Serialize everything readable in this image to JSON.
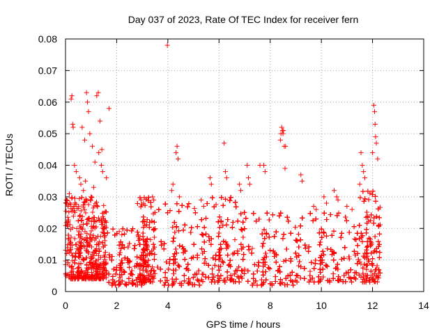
{
  "chart_data": {
    "type": "scatter",
    "title": "Day 037 of 2023, Rate Of TEC Index for receiver fern",
    "xlabel": "GPS time / hours",
    "ylabel": "ROTI / TECUs",
    "xlim": [
      0,
      14
    ],
    "ylim": [
      0,
      0.08
    ],
    "x_ticks": [
      "0",
      "2",
      "4",
      "6",
      "8",
      "10",
      "12",
      "14"
    ],
    "y_ticks": [
      "0",
      "0.01",
      "0.02",
      "0.03",
      "0.04",
      "0.05",
      "0.06",
      "0.07",
      "0.08"
    ],
    "grid": true,
    "marker": "plus",
    "color": "#ff0000",
    "series": [
      {
        "x": [
          0.22,
          0.25,
          0.28,
          0.3,
          0.82,
          0.86,
          0.9,
          1.22,
          1.28,
          1.35,
          1.42,
          1.7,
          0.95,
          1.05,
          1.3,
          0.65,
          0.75,
          1.15,
          0.35,
          0.42,
          0.55,
          0.6,
          0.7,
          0.78,
          1.0,
          1.1,
          1.4,
          1.45,
          1.6,
          0.05,
          0.1,
          0.15,
          3.98,
          4.32,
          4.36,
          4.4,
          4.2,
          4.15,
          4.45,
          6.2,
          6.25,
          6.3,
          5.65,
          5.7,
          7.1,
          7.15,
          7.2,
          7.6,
          7.75,
          7.8,
          8.42,
          8.45,
          8.48,
          8.5,
          8.52,
          8.55,
          8.4,
          8.6,
          8.58,
          9.2,
          9.25,
          10.5,
          10.6,
          10.65,
          11.55,
          11.6,
          11.65,
          11.7,
          12.05,
          12.08,
          12.1,
          12.12,
          12.15,
          12.0,
          12.2,
          11.5,
          6.8,
          6.85,
          3.4,
          3.45,
          2.95,
          3.05,
          5.3,
          5.4,
          2.1,
          2.2,
          9.7,
          9.8,
          10.1,
          10.2,
          11.0,
          11.2
        ],
        "y": [
          0.061,
          0.062,
          0.053,
          0.052,
          0.063,
          0.06,
          0.057,
          0.062,
          0.063,
          0.054,
          0.045,
          0.058,
          0.05,
          0.046,
          0.044,
          0.052,
          0.048,
          0.041,
          0.04,
          0.038,
          0.036,
          0.034,
          0.032,
          0.035,
          0.03,
          0.033,
          0.04,
          0.038,
          0.036,
          0.029,
          0.027,
          0.031,
          0.078,
          0.044,
          0.046,
          0.042,
          0.034,
          0.032,
          0.03,
          0.047,
          0.038,
          0.036,
          0.036,
          0.034,
          0.04,
          0.036,
          0.034,
          0.04,
          0.04,
          0.038,
          0.05,
          0.052,
          0.051,
          0.05,
          0.051,
          0.046,
          0.048,
          0.046,
          0.039,
          0.037,
          0.035,
          0.032,
          0.03,
          0.029,
          0.044,
          0.04,
          0.038,
          0.036,
          0.059,
          0.057,
          0.053,
          0.049,
          0.047,
          0.044,
          0.042,
          0.034,
          0.034,
          0.032,
          0.03,
          0.029,
          0.029,
          0.028,
          0.029,
          0.027,
          0.019,
          0.018,
          0.027,
          0.026,
          0.03,
          0.028,
          0.027,
          0.026
        ],
        "dense_bands": [
          {
            "x_start": 0.0,
            "x_end": 1.6,
            "y_min": 0.004,
            "y_max": 0.03
          },
          {
            "x_start": 1.6,
            "x_end": 3.2,
            "y_min": 0.002,
            "y_max": 0.02
          },
          {
            "x_start": 2.8,
            "x_end": 3.5,
            "y_min": 0.003,
            "y_max": 0.03
          },
          {
            "x_start": 3.6,
            "x_end": 5.5,
            "y_min": 0.002,
            "y_max": 0.028
          },
          {
            "x_start": 5.5,
            "x_end": 7.0,
            "y_min": 0.003,
            "y_max": 0.03
          },
          {
            "x_start": 7.0,
            "x_end": 9.2,
            "y_min": 0.002,
            "y_max": 0.025
          },
          {
            "x_start": 9.2,
            "x_end": 11.5,
            "y_min": 0.003,
            "y_max": 0.025
          },
          {
            "x_start": 11.5,
            "x_end": 12.3,
            "y_min": 0.003,
            "y_max": 0.032
          }
        ]
      }
    ]
  }
}
